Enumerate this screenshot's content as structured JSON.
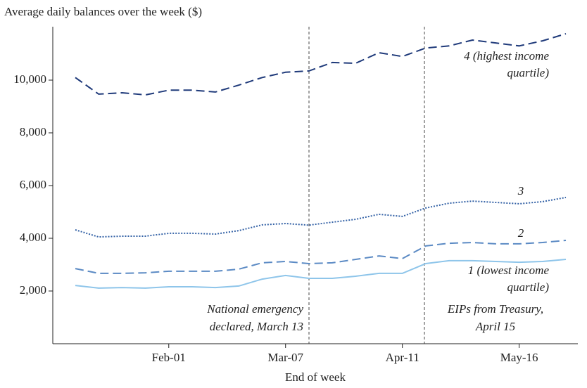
{
  "chart_data": {
    "type": "line",
    "title": "Average daily balances over the week ($)",
    "x_label": "End of week",
    "categories": [
      null,
      null,
      null,
      null,
      "Feb-01",
      null,
      null,
      null,
      null,
      "Mar-07",
      null,
      null,
      null,
      null,
      "Apr-11",
      null,
      null,
      null,
      null,
      "May-16",
      null,
      null
    ],
    "ylim": [
      0,
      12000
    ],
    "yticks": [
      {
        "value": 2000,
        "label": "2,000"
      },
      {
        "value": 4000,
        "label": "4,000"
      },
      {
        "value": 6000,
        "label": "6,000"
      },
      {
        "value": 8000,
        "label": "8,000"
      },
      {
        "value": 10000,
        "label": "10,000"
      }
    ],
    "grid": false,
    "series": [
      {
        "name": [
          "4 (highest income",
          "quartile)"
        ],
        "color": "#1f3a7a",
        "dash": "dashed",
        "values": [
          10100,
          9470,
          9520,
          9440,
          9620,
          9620,
          9550,
          9810,
          10100,
          10300,
          10350,
          10670,
          10640,
          11040,
          10900,
          11220,
          11300,
          11520,
          11410,
          11300,
          11490,
          11760
        ]
      },
      {
        "name": [
          "3"
        ],
        "color": "#3462a6",
        "dash": "dotted",
        "values": [
          4320,
          4050,
          4080,
          4080,
          4190,
          4190,
          4160,
          4290,
          4510,
          4560,
          4500,
          4610,
          4720,
          4910,
          4830,
          5150,
          5330,
          5410,
          5360,
          5310,
          5390,
          5550
        ]
      },
      {
        "name": [
          "2"
        ],
        "color": "#5b8ac4",
        "dash": "dashed",
        "values": [
          2850,
          2670,
          2670,
          2690,
          2750,
          2750,
          2750,
          2830,
          3070,
          3120,
          3040,
          3070,
          3200,
          3330,
          3230,
          3710,
          3810,
          3840,
          3790,
          3790,
          3840,
          3920
        ]
      },
      {
        "name": [
          "1 (lowest income",
          "quartile)"
        ],
        "color": "#8ec5ea",
        "dash": "solid",
        "values": [
          2210,
          2110,
          2130,
          2110,
          2160,
          2160,
          2130,
          2190,
          2450,
          2590,
          2480,
          2480,
          2560,
          2670,
          2670,
          3040,
          3150,
          3150,
          3120,
          3090,
          3120,
          3200
        ]
      }
    ],
    "annotations": [
      {
        "text": [
          "National emergency",
          "declared, March 13"
        ]
      },
      {
        "text": [
          "EIPs from Treasury,",
          "April 15"
        ]
      }
    ]
  }
}
